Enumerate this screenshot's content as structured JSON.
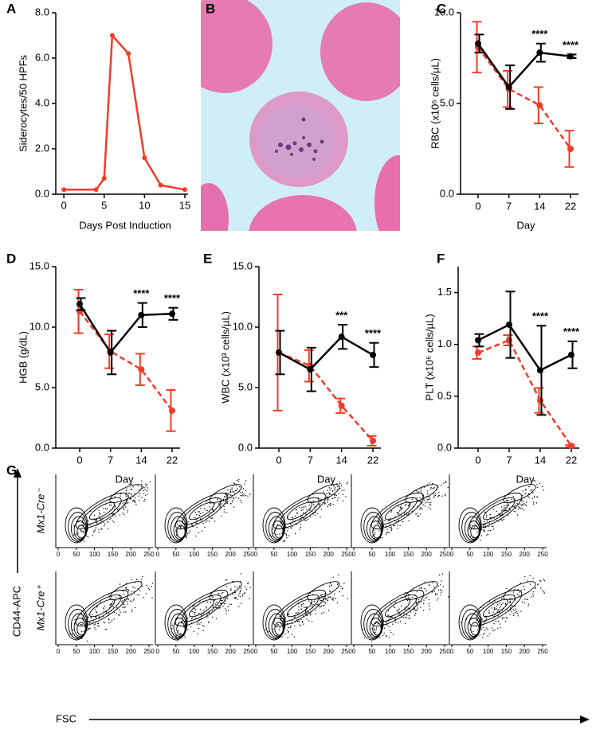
{
  "chart_data": [
    {
      "type": "line",
      "panel": "A",
      "xlabel": "Days Post Induction",
      "ylabel": "Siderocytes/50 HPFs",
      "x": [
        0,
        4,
        5,
        6,
        8,
        10,
        12,
        15
      ],
      "values": [
        0.2,
        0.2,
        0.7,
        7.0,
        6.2,
        1.6,
        0.4,
        0.2
      ],
      "color": "#f03c28",
      "xlim": [
        -1,
        15
      ],
      "xticks": [
        0,
        5,
        10,
        15
      ],
      "ylim": [
        0,
        8
      ],
      "yticks": [
        {
          "value": 0,
          "label": "0.0"
        },
        {
          "value": 2,
          "label": "2.0"
        },
        {
          "value": 4,
          "label": "4.0"
        },
        {
          "value": 6,
          "label": "6.0"
        },
        {
          "value": 8,
          "label": "8.0"
        }
      ]
    },
    {
      "type": "errorline",
      "panel": "C",
      "xlabel": "Day",
      "ylabel": "RBC (x10⁶ cells/µL)",
      "categories": [
        "0",
        "7",
        "14",
        "22"
      ],
      "series": [
        {
          "color": "#f03c28",
          "dashed": true,
          "values": [
            8.1,
            5.8,
            4.9,
            2.5
          ],
          "errors": [
            1.4,
            1.0,
            1.0,
            1.0
          ]
        },
        {
          "color": "#000000",
          "dashed": false,
          "values": [
            8.3,
            5.9,
            7.8,
            7.6
          ],
          "errors": [
            0.5,
            1.2,
            0.5,
            0.1
          ]
        }
      ],
      "significance": [
        null,
        null,
        "****",
        "****"
      ],
      "ylim": [
        0,
        10
      ],
      "yticks": [
        {
          "value": 0,
          "label": "0.0"
        },
        {
          "value": 5,
          "label": "5.0"
        },
        {
          "value": 10,
          "label": "10.0"
        }
      ]
    },
    {
      "type": "errorline",
      "panel": "D",
      "xlabel": "Day",
      "ylabel": "HGB (g/dL)",
      "categories": [
        "0",
        "7",
        "14",
        "22"
      ],
      "series": [
        {
          "color": "#f03c28",
          "dashed": true,
          "values": [
            11.3,
            8.0,
            6.5,
            3.1
          ],
          "errors": [
            1.8,
            1.4,
            1.3,
            1.7
          ]
        },
        {
          "color": "#000000",
          "dashed": false,
          "values": [
            11.9,
            7.9,
            11.0,
            11.1
          ],
          "errors": [
            0.5,
            1.8,
            1.0,
            0.5
          ]
        }
      ],
      "significance": [
        null,
        null,
        "****",
        "****"
      ],
      "ylim": [
        0,
        15
      ],
      "yticks": [
        {
          "value": 0,
          "label": "0.0"
        },
        {
          "value": 5,
          "label": "5.0"
        },
        {
          "value": 10,
          "label": "10.0"
        },
        {
          "value": 15,
          "label": "15.0"
        }
      ]
    },
    {
      "type": "errorline",
      "panel": "E",
      "xlabel": "Day",
      "ylabel": "WBC (x10³ cells/µL)",
      "categories": [
        "0",
        "7",
        "14",
        "22"
      ],
      "series": [
        {
          "color": "#f03c28",
          "dashed": true,
          "values": [
            7.9,
            6.8,
            3.5,
            0.6
          ],
          "errors": [
            4.8,
            1.3,
            0.6,
            0.4
          ]
        },
        {
          "color": "#000000",
          "dashed": false,
          "values": [
            7.9,
            6.5,
            9.2,
            7.7
          ],
          "errors": [
            1.8,
            1.8,
            1.0,
            1.0
          ]
        }
      ],
      "significance": [
        null,
        null,
        "***",
        "****"
      ],
      "ylim": [
        0,
        15
      ],
      "yticks": [
        {
          "value": 0,
          "label": "0.0"
        },
        {
          "value": 5,
          "label": "5.0"
        },
        {
          "value": 10,
          "label": "10.0"
        },
        {
          "value": 15,
          "label": "15.0"
        }
      ]
    },
    {
      "type": "errorline",
      "panel": "F",
      "xlabel": "Day",
      "ylabel": "PLT (x10⁶ cells/µL)",
      "categories": [
        "0",
        "7",
        "14",
        "22"
      ],
      "series": [
        {
          "color": "#f03c28",
          "dashed": true,
          "values": [
            0.92,
            1.04,
            0.46,
            0.02
          ],
          "errors": [
            0.06,
            0.05,
            0.12,
            0.01
          ]
        },
        {
          "color": "#000000",
          "dashed": false,
          "values": [
            1.04,
            1.19,
            0.75,
            0.9
          ],
          "errors": [
            0.06,
            0.32,
            0.43,
            0.13
          ]
        }
      ],
      "significance": [
        null,
        null,
        "****",
        "****"
      ],
      "ylim": [
        0,
        1.75
      ],
      "yticks": [
        {
          "value": 0,
          "label": "0.0"
        },
        {
          "value": 0.5,
          "label": "0.5"
        },
        {
          "value": 1,
          "label": "1.0"
        },
        {
          "value": 1.5,
          "label": "1.5"
        }
      ]
    }
  ],
  "image_panel": {
    "panel": "B"
  },
  "flow_panel": {
    "panel": "G",
    "xlabel": "FSC",
    "ylabel": "CD44-APC",
    "rows": [
      "Mx1-Cre⁻",
      "Mx1-Cre⁺"
    ],
    "xticks": [
      0,
      50,
      100,
      150,
      200,
      250
    ]
  }
}
